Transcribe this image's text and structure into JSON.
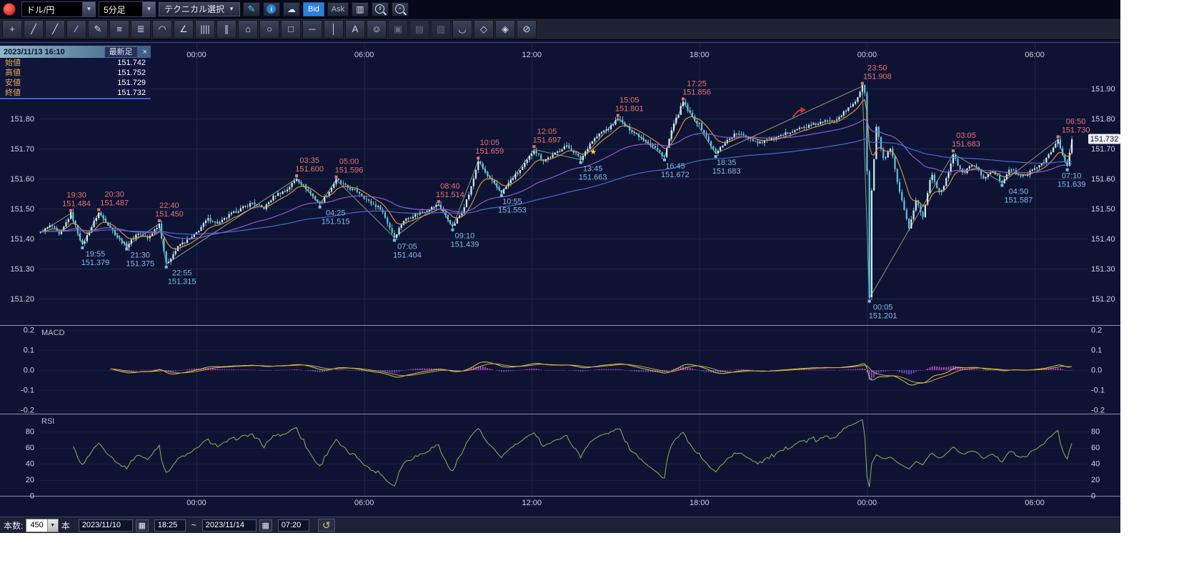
{
  "icons": {
    "dropdown_arrow": "▼",
    "pencil": "✎",
    "info": "i",
    "cloud": "☁",
    "chart": "▥",
    "zoom_range": "⇕",
    "zoom_in": "+",
    "calendar": "▦",
    "reset": "↺"
  },
  "toolbar_top": {
    "pair": "ドル/円",
    "timeframe": "5分足",
    "technical": "テクニカル選択",
    "bid": "Bid",
    "ask": "Ask"
  },
  "draw_toolbar": {
    "tools": [
      {
        "name": "crosshair-tool",
        "glyph": "+",
        "enabled": true
      },
      {
        "name": "trendline-tool",
        "glyph": "╱",
        "enabled": true
      },
      {
        "name": "ray-line-tool",
        "glyph": "╱",
        "enabled": true
      },
      {
        "name": "extended-line-tool",
        "glyph": "∕",
        "enabled": true
      },
      {
        "name": "freehand-tool",
        "glyph": "✎",
        "enabled": true
      },
      {
        "name": "fib-retracement-tool",
        "glyph": "≡",
        "enabled": true
      },
      {
        "name": "horizontal-lines-tool",
        "glyph": "≣",
        "enabled": true
      },
      {
        "name": "fib-arc-tool",
        "glyph": "◠",
        "enabled": true
      },
      {
        "name": "angle-line-tool",
        "glyph": "∠",
        "enabled": true
      },
      {
        "name": "time-zones-tool",
        "glyph": "||||",
        "enabled": true
      },
      {
        "name": "parallel-channel-tool",
        "glyph": "∥",
        "enabled": true
      },
      {
        "name": "pentagon-tool",
        "glyph": "⌂",
        "enabled": true
      },
      {
        "name": "ellipse-tool",
        "glyph": "○",
        "enabled": true
      },
      {
        "name": "rectangle-tool",
        "glyph": "□",
        "enabled": true
      },
      {
        "name": "horizontal-line-tool",
        "glyph": "─",
        "enabled": true
      },
      {
        "name": "vertical-line-tool",
        "glyph": "│",
        "enabled": true
      },
      {
        "name": "text-tool",
        "glyph": "A",
        "enabled": true
      },
      {
        "name": "icon-stamp-tool",
        "glyph": "☺",
        "enabled": true
      },
      {
        "name": "copy-drawing-tool",
        "glyph": "▣",
        "enabled": false
      },
      {
        "name": "layers-tool",
        "glyph": "▤",
        "enabled": false
      },
      {
        "name": "group-tool",
        "glyph": "▥",
        "enabled": false
      },
      {
        "name": "magnet-tool",
        "glyph": "◡",
        "enabled": true
      },
      {
        "name": "eraser-tool",
        "glyph": "◇",
        "enabled": true
      },
      {
        "name": "lock-tool",
        "glyph": "◈",
        "enabled": true
      },
      {
        "name": "clear-all-tool",
        "glyph": "⊘",
        "enabled": true
      }
    ]
  },
  "info_panel": {
    "datetime": "2023/11/13 16:10",
    "latest": "最新足",
    "close": "×",
    "rows": [
      {
        "label": "始値",
        "value": "151.742"
      },
      {
        "label": "高値",
        "value": "151.752"
      },
      {
        "label": "安値",
        "value": "151.729"
      },
      {
        "label": "終値",
        "value": "151.732"
      }
    ]
  },
  "bottom_bar": {
    "count_label": "本数:",
    "count_value": "450",
    "unit": "本",
    "from_date": "2023/11/10",
    "from_time": "18:25",
    "separator": "~",
    "to_date": "2023/11/14",
    "to_time": "07:20"
  },
  "chart_data": [
    {
      "type": "candlestick",
      "title": "ドル/円 5分足",
      "bar_interval_min": 5,
      "t_range": [
        -5.583,
        31.333
      ],
      "x_axis": {
        "labels": [
          "00:00",
          "06:00",
          "12:00",
          "18:00",
          "00:00",
          "06:00"
        ],
        "hours": [
          0,
          6,
          12,
          18,
          24,
          30
        ]
      },
      "y_axis_left": [
        "151.80",
        "151.70",
        "151.60",
        "151.50",
        "151.40",
        "151.30",
        "151.20"
      ],
      "y_axis_right": [
        "151.90",
        "151.80",
        "151.70",
        "151.60",
        "151.50",
        "151.40",
        "151.30",
        "151.20"
      ],
      "ylim": [
        151.11,
        152.05
      ],
      "current_price": "151.732",
      "price_path": [
        [
          -5.583,
          151.42
        ],
        [
          -5.2,
          151.445
        ],
        [
          -4.9,
          151.41
        ],
        [
          -4.5,
          151.484
        ],
        [
          -4.083,
          151.379
        ],
        [
          -3.8,
          151.43
        ],
        [
          -3.5,
          151.487
        ],
        [
          -3.1,
          151.44
        ],
        [
          -2.8,
          151.4
        ],
        [
          -2.5,
          151.375
        ],
        [
          -2.1,
          151.42
        ],
        [
          -1.75,
          151.4
        ],
        [
          -1.333,
          151.45
        ],
        [
          -1.083,
          151.315
        ],
        [
          -0.6,
          151.38
        ],
        [
          -0.2,
          151.4
        ],
        [
          0,
          151.42
        ],
        [
          0.4,
          151.465
        ],
        [
          0.8,
          151.45
        ],
        [
          1.2,
          151.48
        ],
        [
          1.6,
          151.5
        ],
        [
          2,
          151.52
        ],
        [
          2.4,
          151.5
        ],
        [
          2.8,
          151.545
        ],
        [
          3.2,
          151.56
        ],
        [
          3.583,
          151.6
        ],
        [
          3.9,
          151.57
        ],
        [
          4.417,
          151.515
        ],
        [
          4.7,
          151.55
        ],
        [
          5,
          151.596
        ],
        [
          5.4,
          151.57
        ],
        [
          5.8,
          151.555
        ],
        [
          6.2,
          151.52
        ],
        [
          6.6,
          151.5
        ],
        [
          7.083,
          151.404
        ],
        [
          7.4,
          151.46
        ],
        [
          7.7,
          151.475
        ],
        [
          8.1,
          151.49
        ],
        [
          8.667,
          151.514
        ],
        [
          9.167,
          151.439
        ],
        [
          9.5,
          151.49
        ],
        [
          9.8,
          151.56
        ],
        [
          10.083,
          151.659
        ],
        [
          10.4,
          151.61
        ],
        [
          10.917,
          151.553
        ],
        [
          11.3,
          151.6
        ],
        [
          11.7,
          151.64
        ],
        [
          12.083,
          151.697
        ],
        [
          12.4,
          151.66
        ],
        [
          12.8,
          151.68
        ],
        [
          13.2,
          151.71
        ],
        [
          13.45,
          151.695
        ],
        [
          13.75,
          151.663
        ],
        [
          14.1,
          151.72
        ],
        [
          14.5,
          151.755
        ],
        [
          14.8,
          151.77
        ],
        [
          15.083,
          151.801
        ],
        [
          15.4,
          151.77
        ],
        [
          15.8,
          151.745
        ],
        [
          16.2,
          151.72
        ],
        [
          16.75,
          151.672
        ],
        [
          17,
          151.76
        ],
        [
          17.417,
          151.856
        ],
        [
          17.7,
          151.81
        ],
        [
          18,
          151.78
        ],
        [
          18.583,
          151.683
        ],
        [
          18.9,
          151.72
        ],
        [
          19.3,
          151.75
        ],
        [
          19.7,
          151.74
        ],
        [
          20.1,
          151.72
        ],
        [
          20.5,
          151.73
        ],
        [
          20.9,
          151.74
        ],
        [
          21.3,
          151.76
        ],
        [
          21.7,
          151.77
        ],
        [
          22.1,
          151.78
        ],
        [
          22.5,
          151.79
        ],
        [
          22.9,
          151.8
        ],
        [
          23.3,
          151.83
        ],
        [
          23.6,
          151.86
        ],
        [
          23.833,
          151.908
        ],
        [
          23.95,
          151.88
        ],
        [
          24.083,
          151.201
        ],
        [
          24.167,
          151.56
        ],
        [
          24.333,
          151.77
        ],
        [
          24.6,
          151.66
        ],
        [
          24.85,
          151.7
        ],
        [
          25.1,
          151.58
        ],
        [
          25.5,
          151.43
        ],
        [
          25.75,
          151.53
        ],
        [
          26,
          151.47
        ],
        [
          26.3,
          151.62
        ],
        [
          26.6,
          151.55
        ],
        [
          26.85,
          151.6
        ],
        [
          27.083,
          151.683
        ],
        [
          27.4,
          151.615
        ],
        [
          27.8,
          151.65
        ],
        [
          28.2,
          151.6
        ],
        [
          28.5,
          151.625
        ],
        [
          28.833,
          151.587
        ],
        [
          29.1,
          151.635
        ],
        [
          29.5,
          151.605
        ],
        [
          29.9,
          151.625
        ],
        [
          30.3,
          151.655
        ],
        [
          30.6,
          151.69
        ],
        [
          30.833,
          151.73
        ],
        [
          31,
          151.675
        ],
        [
          31.167,
          151.639
        ],
        [
          31.333,
          151.732
        ]
      ],
      "annotations_high": [
        {
          "time": "19:30",
          "price": "151.484",
          "t": -4.5,
          "p": 151.484,
          "dx": 8
        },
        {
          "time": "20:30",
          "price": "151.487",
          "t": -3.5,
          "p": 151.487,
          "dx": 22
        },
        {
          "time": "22:40",
          "price": "151.450",
          "t": -1.333,
          "p": 151.45,
          "dx": 14
        },
        {
          "time": "03:35",
          "price": "151.600",
          "t": 3.583,
          "p": 151.6,
          "dx": 0
        },
        {
          "time": "05:00",
          "price": "151.596",
          "t": 5.0,
          "p": 151.596,
          "dx": 0
        },
        {
          "time": "08:40",
          "price": "151.514",
          "t": 8.667,
          "p": 151.514,
          "dx": 16
        },
        {
          "time": "10:05",
          "price": "151.659",
          "t": 10.083,
          "p": 151.659,
          "dx": 16
        },
        {
          "time": "12:05",
          "price": "151.697",
          "t": 12.083,
          "p": 151.697,
          "dx": 18
        },
        {
          "time": "15:05",
          "price": "151.801",
          "t": 15.083,
          "p": 151.801,
          "dx": 16
        },
        {
          "time": "17:25",
          "price": "151.856",
          "t": 17.417,
          "p": 151.856,
          "dx": 19
        },
        {
          "time": "23:50",
          "price": "151.908",
          "t": 23.833,
          "p": 151.908,
          "dx": 21
        },
        {
          "time": "03:05",
          "price": "151.683",
          "t": 27.083,
          "p": 151.683,
          "dx": 18
        },
        {
          "time": "06:50",
          "price": "151.730",
          "t": 30.833,
          "p": 151.73,
          "dx": 25
        }
      ],
      "annotations_low": [
        {
          "time": "19:55",
          "price": "151.379",
          "t": -4.083,
          "p": 151.379,
          "dx": 18
        },
        {
          "time": "21:30",
          "price": "151.375",
          "t": -2.5,
          "p": 151.375,
          "dx": 19
        },
        {
          "time": "22:55",
          "price": "151.315",
          "t": -1.083,
          "p": 151.315,
          "dx": 22
        },
        {
          "time": "04:25",
          "price": "151.515",
          "t": 4.417,
          "p": 151.515,
          "dx": 22
        },
        {
          "time": "07:05",
          "price": "151.404",
          "t": 7.083,
          "p": 151.404,
          "dx": 18
        },
        {
          "time": "09:10",
          "price": "151.439",
          "t": 9.167,
          "p": 151.439,
          "dx": 17
        },
        {
          "time": "10:55",
          "price": "151.553",
          "t": 10.917,
          "p": 151.553,
          "dx": 15
        },
        {
          "time": "13:45",
          "price": "151.663",
          "t": 13.75,
          "p": 151.663,
          "dx": 17
        },
        {
          "time": "16:45",
          "price": "151.672",
          "t": 16.75,
          "p": 151.672,
          "dx": 15
        },
        {
          "time": "18:35",
          "price": "151.683",
          "t": 18.583,
          "p": 151.683,
          "dx": 15
        },
        {
          "time": "00:05",
          "price": "151.201",
          "t": 24.083,
          "p": 151.201,
          "dx": 19
        },
        {
          "time": "04:50",
          "price": "151.587",
          "t": 28.833,
          "p": 151.587,
          "dx": 23
        },
        {
          "time": "07:10",
          "price": "151.639",
          "t": 31.167,
          "p": 151.639,
          "dx": 6
        }
      ],
      "markers": [
        {
          "type": "star",
          "glyph": "★",
          "t": 14.2,
          "p": 151.693,
          "color": "#ffd83e"
        },
        {
          "type": "arrow",
          "t": 21.55,
          "p": 151.82,
          "color": "#d23535"
        }
      ],
      "ma": {
        "periods": [
          10,
          50,
          150
        ],
        "colors": [
          "#d89a3e",
          "#8f62d8",
          "#4f6fd0"
        ]
      },
      "colors": {
        "up": "#cfeef6",
        "down": "#58c6e0",
        "wick": "#9adbe8",
        "zigzag": "#a8bd8c",
        "annotation_high": "#e8736f",
        "annotation_low": "#85b9e8"
      }
    },
    {
      "type": "line",
      "label": "MACD",
      "y_ticks": [
        "0.2",
        "0.1",
        "0.0",
        "-0.1",
        "-0.2"
      ],
      "ylim": [
        -0.2,
        0.2
      ],
      "fast": 12,
      "slow": 26,
      "signal": 9,
      "colors": {
        "macd": "#c6cf4e",
        "signal": "#de9a3e",
        "hist": "#cf4fd0",
        "hist_neg": "#8055d8"
      }
    },
    {
      "type": "line",
      "label": "RSI",
      "y_ticks": [
        "80",
        "60",
        "40",
        "20",
        "0"
      ],
      "ylim": [
        0,
        100
      ],
      "period": 14,
      "color": "#86b653",
      "x_axis": {
        "labels": [
          "00:00",
          "06:00",
          "12:00",
          "18:00",
          "00:00",
          "06:00"
        ],
        "hours": [
          0,
          6,
          12,
          18,
          24,
          30
        ]
      }
    }
  ]
}
